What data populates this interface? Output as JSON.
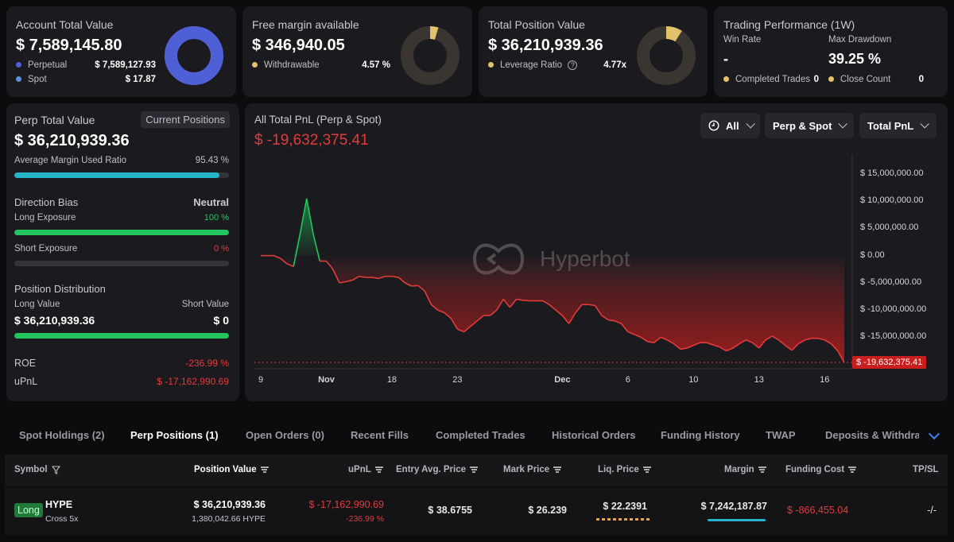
{
  "colors": {
    "accent": "#4f5fd6",
    "gold": "#e2c26a",
    "red": "#e23b3b",
    "green": "#22c55e",
    "teal": "#26b3c9"
  },
  "account": {
    "title": "Account Total Value",
    "value": "$ 7,589,145.80",
    "perp_label": "Perpetual",
    "perp_value": "$ 7,589,127.93",
    "spot_label": "Spot",
    "spot_value": "$ 17.87",
    "donut_fraction": 1.0
  },
  "margin": {
    "title": "Free margin available",
    "value": "$ 346,940.05",
    "withdrawable_label": "Withdrawable",
    "withdrawable_value": "4.57 %",
    "donut_fraction": 0.0457
  },
  "position": {
    "title": "Total Position Value",
    "value": "$ 36,210,939.36",
    "leverage_label": "Leverage Ratio",
    "leverage_value": "4.77x",
    "donut_fraction": 0.09
  },
  "performance": {
    "title": "Trading Performance (1W)",
    "win_rate_label": "Win Rate",
    "win_rate_value": "-",
    "drawdown_label": "Max Drawdown",
    "drawdown_value": "39.25 %",
    "completed_label": "Completed Trades",
    "completed_value": "0",
    "close_label": "Close Count",
    "close_value": "0"
  },
  "perp": {
    "title": "Perp Total Value",
    "badge": "Current Positions",
    "value": "$ 36,210,939.36",
    "margin_ratio_label": "Average Margin Used Ratio",
    "margin_ratio_value": "95.43 %",
    "margin_ratio_fraction": 0.9543,
    "bias_label": "Direction Bias",
    "bias_value": "Neutral",
    "long_exp_label": "Long Exposure",
    "long_exp_value": "100 %",
    "long_exp_fraction": 1.0,
    "short_exp_label": "Short Exposure",
    "short_exp_value": "0 %",
    "short_exp_fraction": 0.0,
    "dist_label": "Position Distribution",
    "long_value_label": "Long Value",
    "short_value_label": "Short Value",
    "long_value": "$ 36,210,939.36",
    "short_value": "$ 0",
    "dist_fraction": 1.0,
    "roe_label": "ROE",
    "roe_value": "-236.99 %",
    "upnl_label": "uPnL",
    "upnl_value": "$ -17,162,990.69"
  },
  "pnl": {
    "title": "All Total PnL (Perp & Spot)",
    "value": "$ -19,632,375.41",
    "filter_all": "All",
    "filter_type": "Perp & Spot",
    "filter_metric": "Total PnL",
    "watermark": "Hyperbot"
  },
  "chart_data": {
    "type": "area",
    "y_ticks": [
      "$ 15,000,000.00",
      "$ 10,000,000.00",
      "$ 5,000,000.00",
      "$ 0.00",
      "$ -5,000,000.00",
      "$ -10,000,000.00",
      "$ -15,000,000.00"
    ],
    "y_tick_values": [
      15000000,
      10000000,
      5000000,
      0,
      -5000000,
      -10000000,
      -15000000
    ],
    "x_ticks": [
      "9",
      "Nov",
      "18",
      "23",
      "Dec",
      "6",
      "10",
      "13",
      "16"
    ],
    "x_tick_index": [
      0,
      10,
      20,
      30,
      46,
      56,
      66,
      76,
      86
    ],
    "last_label": "$ -19,632,375.41",
    "last_value": -19632375.41,
    "ylim": [
      -20500000,
      18500000
    ],
    "values": [
      0,
      0,
      0,
      -500000,
      -1500000,
      -2000000,
      4000000,
      10500000,
      4000000,
      -1000000,
      -1000000,
      -2500000,
      -5000000,
      -4800000,
      -4500000,
      -3800000,
      -4000000,
      -4000000,
      -4200000,
      -3800000,
      -3800000,
      -4000000,
      -5000000,
      -5600000,
      -5500000,
      -6500000,
      -9000000,
      -10000000,
      -10500000,
      -11500000,
      -13500000,
      -14000000,
      -13000000,
      -12000000,
      -11000000,
      -11000000,
      -10000000,
      -8000000,
      -9500000,
      -8000000,
      -8200000,
      -8300000,
      -8300000,
      -8300000,
      -9000000,
      -10000000,
      -11000000,
      -12500000,
      -10500000,
      -9000000,
      -9000000,
      -9200000,
      -11000000,
      -11800000,
      -12000000,
      -12500000,
      -14000000,
      -14500000,
      -15000000,
      -15800000,
      -16000000,
      -15000000,
      -15500000,
      -16200000,
      -17200000,
      -17000000,
      -16500000,
      -16000000,
      -16000000,
      -16400000,
      -16800000,
      -17500000,
      -17000000,
      -16200000,
      -15500000,
      -16000000,
      -17000000,
      -15500000,
      -14800000,
      -15500000,
      -16500000,
      -17400000,
      -16200000,
      -15500000,
      -15200000,
      -15200000,
      -15500000,
      -16200000,
      -17500000,
      -19632375
    ]
  },
  "tabs": [
    "Spot Holdings (2)",
    "Perp Positions (1)",
    "Open Orders (0)",
    "Recent Fills",
    "Completed Trades",
    "Historical Orders",
    "Funding History",
    "TWAP",
    "Deposits & Withdraw"
  ],
  "table": {
    "headers": {
      "symbol": "Symbol",
      "position_value": "Position Value",
      "upnl": "uPnL",
      "entry": "Entry Avg. Price",
      "mark": "Mark Price",
      "liq": "Liq. Price",
      "margin": "Margin",
      "funding": "Funding Cost",
      "tpsl": "TP/SL"
    },
    "row": {
      "side": "Long",
      "coin": "HYPE",
      "mode": "Cross 5x",
      "position_value": "$ 36,210,939.36",
      "position_size": "1,380,042.66 HYPE",
      "upnl": "$ -17,162,990.69",
      "upnl_pct": "-236.99 %",
      "entry": "$ 38.6755",
      "mark": "$ 26.239",
      "liq": "$ 22.2391",
      "margin": "$ 7,242,187.87",
      "funding": "$ -866,455.04",
      "tpsl": "-/-"
    }
  }
}
